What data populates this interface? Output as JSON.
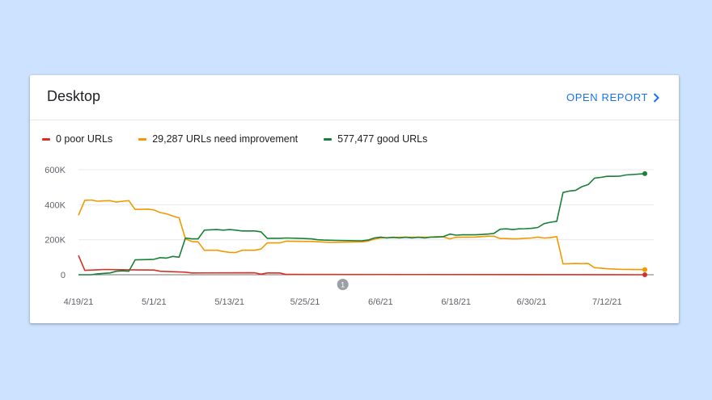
{
  "card": {
    "title": "Desktop",
    "open_report_label": "OPEN REPORT"
  },
  "legend": [
    {
      "label": "0 poor URLs",
      "color": "#d93025"
    },
    {
      "label": "29,287 URLs need improvement",
      "color": "#f29900"
    },
    {
      "label": "577,477 good URLs",
      "color": "#188038"
    }
  ],
  "chart_data": {
    "type": "line",
    "y_ticks": [
      "600K",
      "400K",
      "200K",
      "0"
    ],
    "y_tick_values": [
      600000,
      400000,
      200000,
      0
    ],
    "ylim": [
      0,
      600000
    ],
    "x_ticks": [
      "4/19/21",
      "5/1/21",
      "5/13/21",
      "5/25/21",
      "6/6/21",
      "6/18/21",
      "6/30/21",
      "7/12/21"
    ],
    "x_tick_index": [
      0,
      12,
      24,
      36,
      48,
      60,
      72,
      84
    ],
    "x_count": 91,
    "annotation": {
      "label": "1",
      "index": 42
    },
    "series": [
      {
        "name": "0 poor URLs",
        "color": "#d93025",
        "points": [
          [
            0,
            110000
          ],
          [
            1,
            25000
          ],
          [
            3,
            28000
          ],
          [
            4,
            30000
          ],
          [
            8,
            28000
          ],
          [
            12,
            27000
          ],
          [
            13,
            20000
          ],
          [
            17,
            15000
          ],
          [
            18,
            10000
          ],
          [
            28,
            11000
          ],
          [
            29,
            3000
          ],
          [
            30,
            10000
          ],
          [
            32,
            10000
          ],
          [
            33,
            2000
          ],
          [
            90,
            0
          ]
        ]
      },
      {
        "name": "29,287 URLs need improvement",
        "color": "#f29900",
        "points": [
          [
            0,
            340000
          ],
          [
            1,
            425000
          ],
          [
            2,
            427000
          ],
          [
            3,
            420000
          ],
          [
            4,
            422000
          ],
          [
            5,
            423000
          ],
          [
            6,
            415000
          ],
          [
            7,
            420000
          ],
          [
            8,
            423000
          ],
          [
            9,
            373000
          ],
          [
            11,
            375000
          ],
          [
            12,
            370000
          ],
          [
            13,
            355000
          ],
          [
            14,
            348000
          ],
          [
            15,
            335000
          ],
          [
            16,
            325000
          ],
          [
            17,
            205000
          ],
          [
            18,
            190000
          ],
          [
            19,
            188000
          ],
          [
            20,
            140000
          ],
          [
            21,
            140000
          ],
          [
            22,
            140000
          ],
          [
            23,
            133000
          ],
          [
            24,
            128000
          ],
          [
            25,
            127000
          ],
          [
            26,
            140000
          ],
          [
            28,
            140000
          ],
          [
            29,
            147000
          ],
          [
            30,
            182000
          ],
          [
            31,
            182000
          ],
          [
            32,
            182000
          ],
          [
            33,
            192000
          ],
          [
            37,
            190000
          ],
          [
            40,
            185000
          ],
          [
            45,
            188000
          ],
          [
            46,
            192000
          ],
          [
            47,
            203000
          ],
          [
            48,
            210000
          ],
          [
            49,
            212000
          ],
          [
            50,
            212000
          ],
          [
            51,
            214000
          ],
          [
            52,
            214000
          ],
          [
            53,
            214000
          ],
          [
            54,
            214000
          ],
          [
            56,
            215000
          ],
          [
            57,
            218000
          ],
          [
            58,
            216000
          ],
          [
            59,
            205000
          ],
          [
            60,
            214000
          ],
          [
            61,
            214000
          ],
          [
            62,
            214000
          ],
          [
            63,
            215000
          ],
          [
            64,
            218000
          ],
          [
            65,
            220000
          ],
          [
            66,
            220000
          ],
          [
            67,
            207000
          ],
          [
            68,
            207000
          ],
          [
            69,
            205000
          ],
          [
            70,
            206000
          ],
          [
            71,
            208000
          ],
          [
            72,
            210000
          ],
          [
            73,
            215000
          ],
          [
            74,
            210000
          ],
          [
            75,
            212000
          ],
          [
            76,
            218000
          ],
          [
            77,
            62000
          ],
          [
            78,
            63000
          ],
          [
            79,
            64000
          ],
          [
            80,
            63000
          ],
          [
            81,
            64000
          ],
          [
            82,
            40000
          ],
          [
            83,
            38000
          ],
          [
            84,
            34000
          ],
          [
            86,
            31000
          ],
          [
            90,
            29287
          ]
        ]
      },
      {
        "name": "577,477 good URLs",
        "color": "#188038",
        "points": [
          [
            0,
            0
          ],
          [
            2,
            0
          ],
          [
            3,
            5000
          ],
          [
            4,
            8000
          ],
          [
            5,
            10000
          ],
          [
            6,
            20000
          ],
          [
            7,
            22000
          ],
          [
            8,
            20000
          ],
          [
            9,
            85000
          ],
          [
            11,
            87000
          ],
          [
            12,
            88000
          ],
          [
            13,
            98000
          ],
          [
            14,
            95000
          ],
          [
            15,
            105000
          ],
          [
            16,
            100000
          ],
          [
            17,
            210000
          ],
          [
            18,
            205000
          ],
          [
            19,
            205000
          ],
          [
            20,
            255000
          ],
          [
            22,
            258000
          ],
          [
            23,
            255000
          ],
          [
            24,
            258000
          ],
          [
            25,
            255000
          ],
          [
            26,
            250000
          ],
          [
            28,
            250000
          ],
          [
            29,
            245000
          ],
          [
            30,
            208000
          ],
          [
            32,
            208000
          ],
          [
            33,
            210000
          ],
          [
            35,
            208000
          ],
          [
            37,
            205000
          ],
          [
            38,
            200000
          ],
          [
            39,
            198000
          ],
          [
            41,
            196000
          ],
          [
            45,
            194000
          ],
          [
            46,
            198000
          ],
          [
            47,
            210000
          ],
          [
            48,
            215000
          ],
          [
            49,
            210000
          ],
          [
            50,
            214000
          ],
          [
            51,
            210000
          ],
          [
            52,
            214000
          ],
          [
            53,
            210000
          ],
          [
            54,
            214000
          ],
          [
            55,
            210000
          ],
          [
            56,
            215000
          ],
          [
            57,
            215000
          ],
          [
            58,
            218000
          ],
          [
            59,
            232000
          ],
          [
            60,
            226000
          ],
          [
            61,
            228000
          ],
          [
            62,
            228000
          ],
          [
            63,
            228000
          ],
          [
            64,
            230000
          ],
          [
            65,
            232000
          ],
          [
            66,
            236000
          ],
          [
            67,
            260000
          ],
          [
            68,
            262000
          ],
          [
            69,
            258000
          ],
          [
            70,
            262000
          ],
          [
            71,
            263000
          ],
          [
            72,
            265000
          ],
          [
            73,
            270000
          ],
          [
            74,
            292000
          ],
          [
            75,
            300000
          ],
          [
            76,
            305000
          ],
          [
            77,
            470000
          ],
          [
            78,
            478000
          ],
          [
            79,
            482000
          ],
          [
            80,
            503000
          ],
          [
            81,
            515000
          ],
          [
            82,
            552000
          ],
          [
            83,
            556000
          ],
          [
            84,
            562000
          ],
          [
            85,
            562000
          ],
          [
            86,
            563000
          ],
          [
            87,
            570000
          ],
          [
            90,
            577477
          ]
        ]
      }
    ]
  }
}
